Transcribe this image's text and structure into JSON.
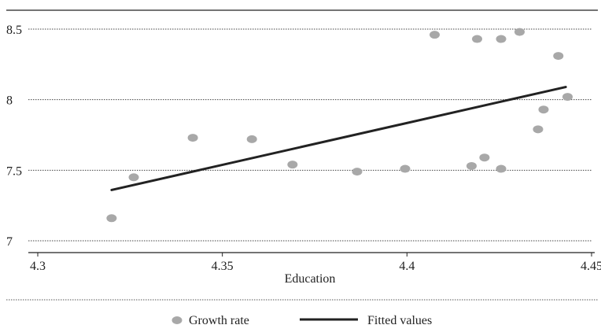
{
  "chart_data": {
    "type": "scatter",
    "title": "",
    "xlabel": "Education",
    "ylabel": "",
    "xlim": [
      4.3,
      4.45
    ],
    "ylim": [
      7,
      8.5
    ],
    "x_ticks": [
      4.3,
      4.35,
      4.4,
      4.45
    ],
    "x_tick_labels": [
      "4.3",
      "4.35",
      "4.4",
      "4.45"
    ],
    "y_ticks": [
      7,
      7.5,
      8,
      8.5
    ],
    "y_tick_labels": [
      "7",
      "7.5",
      "8",
      "8.5"
    ],
    "grid": "horizontal dotted",
    "legend_position": "bottom",
    "series": [
      {
        "name": "Growth rate",
        "kind": "scatter",
        "color": "#a8a8a8",
        "points": [
          {
            "x": 4.32,
            "y": 7.16
          },
          {
            "x": 4.326,
            "y": 7.45
          },
          {
            "x": 4.342,
            "y": 7.73
          },
          {
            "x": 4.358,
            "y": 7.72
          },
          {
            "x": 4.369,
            "y": 7.54
          },
          {
            "x": 4.3865,
            "y": 7.49
          },
          {
            "x": 4.3995,
            "y": 7.51
          },
          {
            "x": 4.4075,
            "y": 8.46
          },
          {
            "x": 4.4175,
            "y": 7.53
          },
          {
            "x": 4.419,
            "y": 8.43
          },
          {
            "x": 4.421,
            "y": 7.59
          },
          {
            "x": 4.4255,
            "y": 7.51
          },
          {
            "x": 4.4255,
            "y": 8.43
          },
          {
            "x": 4.4305,
            "y": 8.48
          },
          {
            "x": 4.4355,
            "y": 7.79
          },
          {
            "x": 4.437,
            "y": 7.93
          },
          {
            "x": 4.441,
            "y": 8.31
          },
          {
            "x": 4.4435,
            "y": 8.02
          }
        ]
      },
      {
        "name": "Fitted values",
        "kind": "line",
        "color": "#222222",
        "points": [
          {
            "x": 4.32,
            "y": 7.36
          },
          {
            "x": 4.443,
            "y": 8.09
          }
        ]
      }
    ]
  }
}
